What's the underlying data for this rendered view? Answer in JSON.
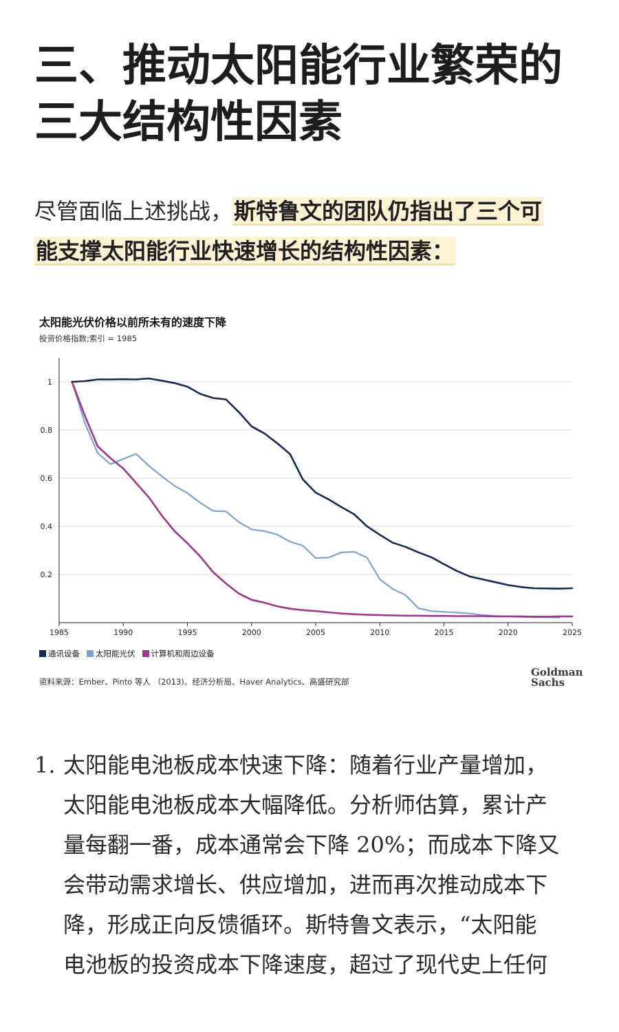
{
  "heading": {
    "line1": "三、推动太阳能行业繁荣的",
    "line2": "三大结构性因素"
  },
  "intro": {
    "plain": "尽管面临上述挑战，",
    "highlight_line1": "斯特鲁文的团队仍指出了三个可",
    "highlight_line2": "能支撑太阳能行业快速增长的结构性因素："
  },
  "chart_data": {
    "type": "line",
    "title": "太阳能光伏价格以前所未有的速度下降",
    "subtitle": "投资价格指数;索引 = 1985",
    "xlabel": "",
    "ylabel": "",
    "xlim": [
      1985,
      2025
    ],
    "ylim": [
      0,
      1.1
    ],
    "x_ticks": [
      1985,
      1990,
      1995,
      2000,
      2005,
      2010,
      2015,
      2020,
      2025
    ],
    "y_ticks": [
      0.2,
      0.4,
      0.6,
      0.8,
      1
    ],
    "y_tick_labels": [
      "0.2",
      "0.4",
      "0.6",
      "0.8",
      "1"
    ],
    "grid": true,
    "legend_position": "bottom-left",
    "series": [
      {
        "name": "通讯设备",
        "color": "#14285a",
        "x": [
          1986,
          1987,
          1988,
          1989,
          1990,
          1991,
          1992,
          1993,
          1994,
          1995,
          1996,
          1997,
          1998,
          1999,
          2000,
          2001,
          2002,
          2003,
          2004,
          2005,
          2006,
          2007,
          2008,
          2009,
          2010,
          2011,
          2012,
          2013,
          2014,
          2015,
          2016,
          2017,
          2018,
          2019,
          2020,
          2021,
          2022,
          2023,
          2024,
          2025
        ],
        "values": [
          1.0,
          1.003,
          1.01,
          1.01,
          1.011,
          1.01,
          1.014,
          1.005,
          0.995,
          0.98,
          0.95,
          0.933,
          0.927,
          0.875,
          0.815,
          0.786,
          0.745,
          0.7,
          0.595,
          0.54,
          0.512,
          0.48,
          0.45,
          0.4,
          0.365,
          0.332,
          0.315,
          0.292,
          0.272,
          0.243,
          0.215,
          0.192,
          0.18,
          0.168,
          0.156,
          0.148,
          0.143,
          0.142,
          0.141,
          0.143
        ]
      },
      {
        "name": "太阳能光伏",
        "color": "#7aa3cf",
        "x": [
          1986,
          1987,
          1988,
          1989,
          1990,
          1991,
          1992,
          1993,
          1994,
          1995,
          1996,
          1997,
          1998,
          1999,
          2000,
          2001,
          2002,
          2003,
          2004,
          2005,
          2006,
          2007,
          2008,
          2009,
          2010,
          2011,
          2012,
          2013,
          2014,
          2015,
          2016,
          2017,
          2018,
          2019,
          2020,
          2021,
          2022,
          2023,
          2024
        ],
        "values": [
          1.0,
          0.83,
          0.705,
          0.658,
          0.68,
          0.701,
          0.651,
          0.608,
          0.568,
          0.538,
          0.498,
          0.464,
          0.462,
          0.418,
          0.387,
          0.38,
          0.366,
          0.336,
          0.32,
          0.268,
          0.27,
          0.292,
          0.294,
          0.27,
          0.18,
          0.14,
          0.115,
          0.06,
          0.048,
          0.045,
          0.042,
          0.038,
          0.032,
          0.028,
          0.026,
          0.024,
          0.022,
          0.022,
          0.021
        ]
      },
      {
        "name": "计算机和周边设备",
        "color": "#a0368c",
        "x": [
          1986,
          1987,
          1988,
          1989,
          1990,
          1991,
          1992,
          1993,
          1994,
          1995,
          1996,
          1997,
          1998,
          1999,
          2000,
          2001,
          2002,
          2003,
          2004,
          2005,
          2006,
          2007,
          2008,
          2009,
          2010,
          2011,
          2012,
          2013,
          2014,
          2015,
          2016,
          2017,
          2018,
          2019,
          2020,
          2021,
          2022,
          2023,
          2024,
          2025
        ],
        "values": [
          1.0,
          0.86,
          0.733,
          0.683,
          0.64,
          0.58,
          0.52,
          0.445,
          0.38,
          0.33,
          0.275,
          0.21,
          0.163,
          0.121,
          0.095,
          0.083,
          0.068,
          0.058,
          0.052,
          0.048,
          0.043,
          0.038,
          0.035,
          0.033,
          0.031,
          0.03,
          0.029,
          0.029,
          0.028,
          0.028,
          0.027,
          0.027,
          0.027,
          0.026,
          0.026,
          0.026,
          0.025,
          0.025,
          0.026,
          0.026
        ]
      }
    ],
    "source": "资料来源：Ember、Pinto 等人 （2013)、经济分析局、Haver Analytics、高盛研究部"
  },
  "logo": {
    "line1": "Goldman",
    "line2": "Sachs"
  },
  "list": {
    "number": "1.",
    "lines": [
      "太阳能电池板成本快速下降：随着行业产量增加，",
      "太阳能电池板成本大幅降低。分析师估算，累计产",
      "量每翻一番，成本通常会下降 20%；而成本下降又",
      "会带动需求增长、供应增加，进而再次推动成本下",
      "降，形成正向反馈循环。斯特鲁文表示，“太阳能",
      "电池板的投资成本下降速度，超过了现代史上任何"
    ]
  }
}
